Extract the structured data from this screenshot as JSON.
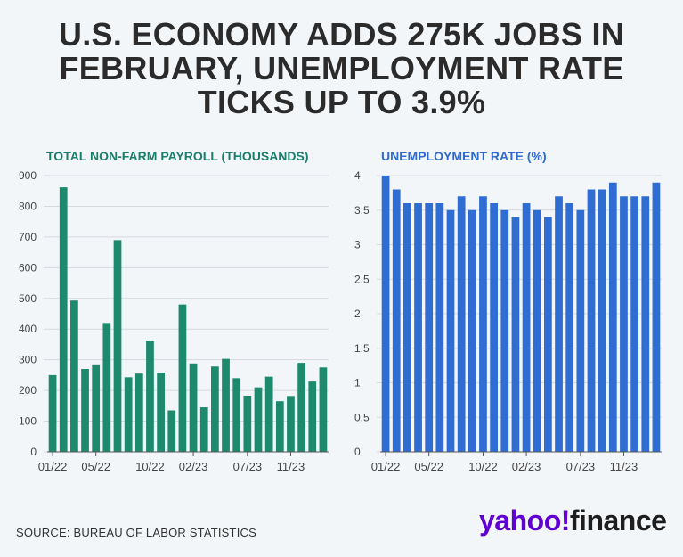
{
  "headline": "U.S. ECONOMY ADDS 275K JOBS IN FEBRUARY, UNEMPLOYMENT RATE TICKS UP TO 3.9%",
  "source": "SOURCE: BUREAU OF LABOR STATISTICS",
  "logo": {
    "part1": "yahoo!",
    "part2": "finance"
  },
  "colors": {
    "payroll": "#1d8a6e",
    "unemployment": "#2f6dd3",
    "grid": "#d4d9de",
    "axis": "#444444"
  },
  "chart_data": [
    {
      "type": "bar",
      "title": "TOTAL NON-FARM PAYROLL (THOUSANDS)",
      "xlabel": "",
      "ylabel": "",
      "ylim": [
        0,
        900
      ],
      "yticks": [
        0,
        100,
        200,
        300,
        400,
        500,
        600,
        700,
        800,
        900
      ],
      "xtick_labels": [
        {
          "index": 0,
          "label": "01/22"
        },
        {
          "index": 4,
          "label": "05/22"
        },
        {
          "index": 9,
          "label": "10/22"
        },
        {
          "index": 13,
          "label": "02/23"
        },
        {
          "index": 18,
          "label": "07/23"
        },
        {
          "index": 22,
          "label": "11/23"
        }
      ],
      "categories": [
        "01/22",
        "02/22",
        "03/22",
        "04/22",
        "05/22",
        "06/22",
        "07/22",
        "08/22",
        "09/22",
        "10/22",
        "11/22",
        "12/22",
        "01/23",
        "02/23",
        "03/23",
        "04/23",
        "05/23",
        "06/23",
        "07/23",
        "08/23",
        "09/23",
        "10/23",
        "11/23",
        "12/23",
        "01/24",
        "02/24"
      ],
      "values": [
        250,
        862,
        493,
        270,
        285,
        420,
        690,
        243,
        255,
        360,
        258,
        135,
        480,
        288,
        145,
        278,
        303,
        240,
        183,
        210,
        245,
        165,
        182,
        290,
        229,
        275
      ]
    },
    {
      "type": "bar",
      "title": "UNEMPLOYMENT RATE (%)",
      "xlabel": "",
      "ylabel": "",
      "ylim": [
        0,
        4
      ],
      "yticks": [
        0,
        0.5,
        1,
        1.5,
        2,
        2.5,
        3,
        3.5,
        4
      ],
      "xtick_labels": [
        {
          "index": 0,
          "label": "01/22"
        },
        {
          "index": 4,
          "label": "05/22"
        },
        {
          "index": 9,
          "label": "10/22"
        },
        {
          "index": 13,
          "label": "02/23"
        },
        {
          "index": 18,
          "label": "07/23"
        },
        {
          "index": 22,
          "label": "11/23"
        }
      ],
      "categories": [
        "01/22",
        "02/22",
        "03/22",
        "04/22",
        "05/22",
        "06/22",
        "07/22",
        "08/22",
        "09/22",
        "10/22",
        "11/22",
        "12/22",
        "01/23",
        "02/23",
        "03/23",
        "04/23",
        "05/23",
        "06/23",
        "07/23",
        "08/23",
        "09/23",
        "10/23",
        "11/23",
        "12/23",
        "01/24",
        "02/24"
      ],
      "values": [
        4.0,
        3.8,
        3.6,
        3.6,
        3.6,
        3.6,
        3.5,
        3.7,
        3.5,
        3.7,
        3.6,
        3.5,
        3.4,
        3.6,
        3.5,
        3.4,
        3.7,
        3.6,
        3.5,
        3.8,
        3.8,
        3.9,
        3.7,
        3.7,
        3.7,
        3.9
      ]
    }
  ]
}
